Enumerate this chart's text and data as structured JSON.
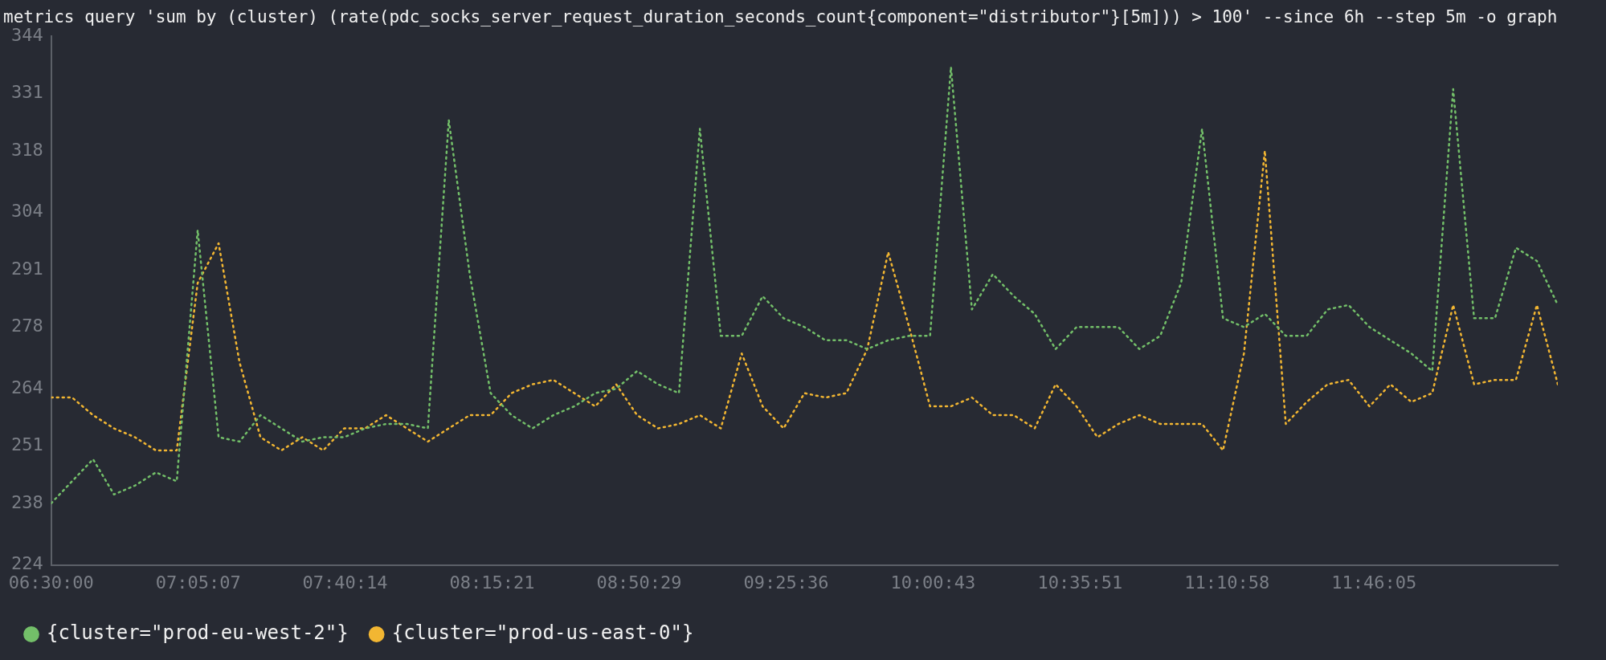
{
  "chart_data": {
    "type": "line",
    "title": "metrics query 'sum by (cluster) (rate(pdc_socks_server_request_duration_seconds_count{component=\"distributor\"}[5m])) > 100' --since 6h --step 5m -o graph",
    "x": [
      6.5,
      6.5833,
      6.6667,
      6.75,
      6.8333,
      6.9167,
      7,
      7.0833,
      7.1667,
      7.25,
      7.3333,
      7.4167,
      7.5,
      7.5833,
      7.6667,
      7.75,
      7.8333,
      7.9167,
      8,
      8.0833,
      8.1667,
      8.25,
      8.3333,
      8.4167,
      8.5,
      8.5833,
      8.6667,
      8.75,
      8.8333,
      8.9167,
      9,
      9.0833,
      9.1667,
      9.25,
      9.3333,
      9.4167,
      9.5,
      9.5833,
      9.6667,
      9.75,
      9.8333,
      9.9167,
      10,
      10.0833,
      10.1667,
      10.25,
      10.3333,
      10.4167,
      10.5,
      10.5833,
      10.6667,
      10.75,
      10.8333,
      10.9167,
      11,
      11.0833,
      11.1667,
      11.25,
      11.3333,
      11.4167,
      11.5,
      11.5833,
      11.6667,
      11.75,
      11.8333,
      11.9167,
      12,
      12.0833,
      12.1667,
      12.25,
      12.3333,
      12.4167,
      12.5
    ],
    "series": [
      {
        "name": "{cluster=\"prod-eu-west-2\"}",
        "color": "#73bf69",
        "values": [
          238,
          243,
          248,
          240,
          242,
          245,
          243,
          300,
          253,
          252,
          258,
          255,
          252,
          253,
          253,
          255,
          256,
          256,
          255,
          325,
          290,
          263,
          258,
          255,
          258,
          260,
          263,
          264,
          268,
          265,
          263,
          323,
          276,
          276,
          285,
          280,
          278,
          275,
          275,
          273,
          275,
          276,
          276,
          337,
          282,
          290,
          285,
          281,
          273,
          278,
          278,
          278,
          273,
          276,
          288,
          323,
          280,
          278,
          281,
          276,
          276,
          282,
          283,
          278,
          275,
          272,
          268,
          332,
          280,
          280,
          296,
          293,
          283
        ]
      },
      {
        "name": "{cluster=\"prod-us-east-0\"}",
        "color": "#f2b632",
        "values": [
          262,
          262,
          258,
          255,
          253,
          250,
          250,
          288,
          297,
          270,
          253,
          250,
          253,
          250,
          255,
          255,
          258,
          255,
          252,
          255,
          258,
          258,
          263,
          265,
          266,
          263,
          260,
          265,
          258,
          255,
          256,
          258,
          255,
          272,
          260,
          255,
          263,
          262,
          263,
          273,
          295,
          278,
          260,
          260,
          262,
          258,
          258,
          255,
          265,
          260,
          253,
          256,
          258,
          256,
          256,
          256,
          250,
          272,
          318,
          256,
          261,
          265,
          266,
          260,
          265,
          261,
          263,
          283,
          265,
          266,
          266,
          283,
          265
        ]
      }
    ],
    "xlim": [
      6.5,
      12.5
    ],
    "xticks": [
      {
        "value": 6.5,
        "label": "06:30:00"
      },
      {
        "value": 7.08528,
        "label": "07:05:07"
      },
      {
        "value": 7.67056,
        "label": "07:40:14"
      },
      {
        "value": 8.25583,
        "label": "08:15:21"
      },
      {
        "value": 8.84139,
        "label": "08:50:29"
      },
      {
        "value": 9.42667,
        "label": "09:25:36"
      },
      {
        "value": 10.01194,
        "label": "10:00:43"
      },
      {
        "value": 10.5975,
        "label": "10:35:51"
      },
      {
        "value": 11.18278,
        "label": "11:10:58"
      },
      {
        "value": 11.76806,
        "label": "11:46:05"
      }
    ],
    "ylim": [
      224,
      344
    ],
    "yticks": [
      224,
      238,
      251,
      264,
      278,
      291,
      304,
      318,
      331,
      344
    ],
    "grid": false,
    "legend": "bottom left",
    "marker": "none",
    "line_style": "dotted"
  }
}
